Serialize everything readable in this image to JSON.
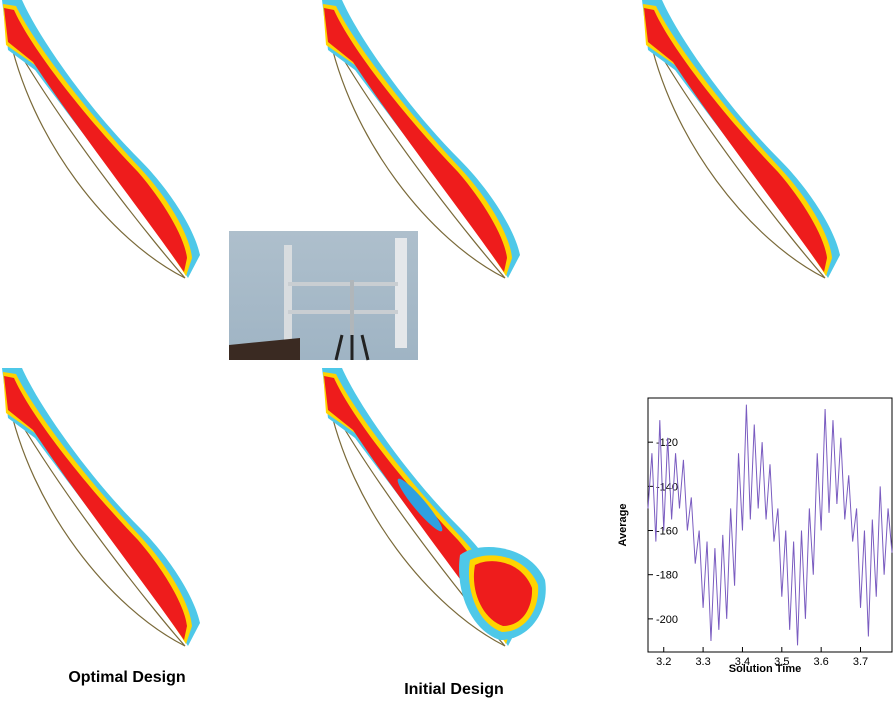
{
  "captions": {
    "left": "Optimal Design",
    "center": "Initial Design"
  },
  "chart_data": {
    "type": "line",
    "x_label": "Solution Time",
    "y_label": "Average",
    "x": [
      3.16,
      3.17,
      3.18,
      3.19,
      3.2,
      3.21,
      3.22,
      3.23,
      3.24,
      3.25,
      3.26,
      3.27,
      3.28,
      3.29,
      3.3,
      3.31,
      3.32,
      3.33,
      3.34,
      3.35,
      3.36,
      3.37,
      3.38,
      3.39,
      3.4,
      3.41,
      3.42,
      3.43,
      3.44,
      3.45,
      3.46,
      3.47,
      3.48,
      3.49,
      3.5,
      3.51,
      3.52,
      3.53,
      3.54,
      3.55,
      3.56,
      3.57,
      3.58,
      3.59,
      3.6,
      3.61,
      3.62,
      3.63,
      3.64,
      3.65,
      3.66,
      3.67,
      3.68,
      3.69,
      3.7,
      3.71,
      3.72,
      3.73,
      3.74,
      3.75,
      3.76,
      3.77,
      3.78
    ],
    "values": [
      -150,
      -125,
      -165,
      -110,
      -160,
      -118,
      -155,
      -125,
      -150,
      -128,
      -160,
      -145,
      -175,
      -160,
      -195,
      -165,
      -210,
      -168,
      -205,
      -162,
      -200,
      -150,
      -185,
      -125,
      -160,
      -103,
      -155,
      -112,
      -150,
      -120,
      -155,
      -130,
      -165,
      -150,
      -190,
      -160,
      -205,
      -165,
      -212,
      -160,
      -200,
      -150,
      -180,
      -125,
      -160,
      -105,
      -152,
      -110,
      -148,
      -118,
      -155,
      -135,
      -165,
      -150,
      -195,
      -160,
      -208,
      -155,
      -190,
      -140,
      -180,
      -150,
      -170
    ],
    "color": "#7a5cc0",
    "xlim": [
      3.16,
      3.78
    ],
    "ylim": [
      -215,
      -100
    ],
    "xticks": [
      3.2,
      3.3,
      3.4,
      3.5,
      3.6,
      3.7
    ],
    "yticks": [
      -120,
      -140,
      -160,
      -180,
      -200
    ]
  }
}
